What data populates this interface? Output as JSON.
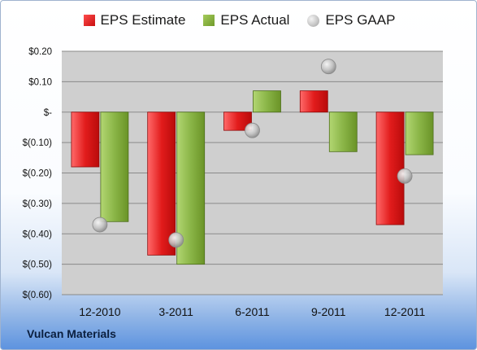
{
  "chart_data": {
    "type": "bar",
    "categories": [
      "12-2010",
      "3-2011",
      "6-2011",
      "9-2011",
      "12-2011"
    ],
    "series": [
      {
        "name": "EPS Estimate",
        "kind": "bar",
        "color": "#e02020",
        "values": [
          -0.18,
          -0.47,
          -0.06,
          0.07,
          -0.37
        ]
      },
      {
        "name": "EPS Actual",
        "kind": "bar",
        "color": "#8cb848",
        "values": [
          -0.36,
          -0.5,
          0.07,
          -0.13,
          -0.14
        ]
      },
      {
        "name": "EPS GAAP",
        "kind": "marker",
        "color": "#b8b8b8",
        "values": [
          -0.37,
          -0.42,
          -0.06,
          0.15,
          -0.21
        ]
      }
    ],
    "ylim": [
      -0.6,
      0.2
    ],
    "yticks": [
      0.2,
      0.1,
      0,
      -0.1,
      -0.2,
      -0.3,
      -0.4,
      -0.5,
      -0.6
    ],
    "ytick_labels": [
      "$0.20",
      "$0.10",
      "$-",
      "$(0.10)",
      "$(0.20)",
      "$(0.30)",
      "$(0.40)",
      "$(0.50)",
      "$(0.60)"
    ],
    "grid": true,
    "legend_position": "top",
    "title": "",
    "xlabel": "",
    "ylabel": ""
  },
  "footer": {
    "company": "Vulcan Materials"
  }
}
